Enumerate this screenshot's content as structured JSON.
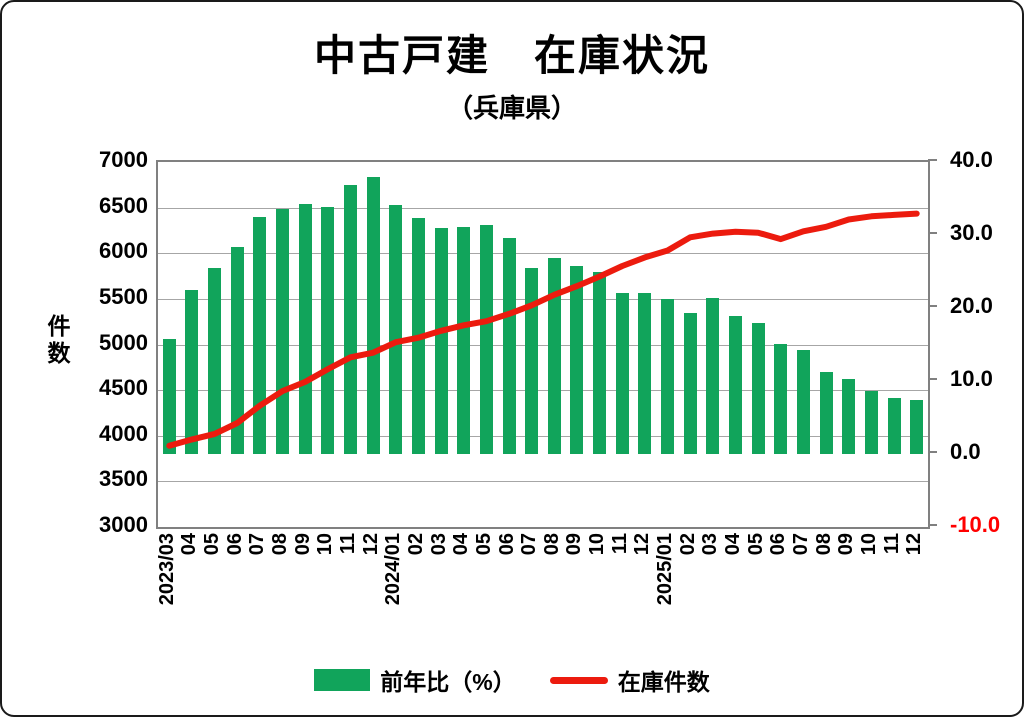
{
  "title": {
    "main": "中古戸建　在庫状況",
    "sub": "（兵庫県）"
  },
  "colors": {
    "bar": "#11a45b",
    "line": "#ec1b0e",
    "grid": "#a6a6a6",
    "plot_border": "#808080",
    "negative_tick_label": "#ff0000"
  },
  "legend": {
    "items": [
      {
        "label": "前年比（%）",
        "marker": "bar"
      },
      {
        "label": "在庫件数",
        "marker": "line"
      }
    ]
  },
  "chart_data": {
    "type": "combo-bar-line",
    "grid": true,
    "legend_position": "bottom",
    "categories": [
      "2023/03",
      "04",
      "05",
      "06",
      "07",
      "08",
      "09",
      "10",
      "11",
      "12",
      "2024/01",
      "02",
      "03",
      "04",
      "05",
      "06",
      "07",
      "08",
      "09",
      "10",
      "11",
      "12",
      "2025/01",
      "02",
      "03",
      "04",
      "05",
      "06",
      "07",
      "08",
      "09",
      "10",
      "11",
      "12"
    ],
    "series": [
      {
        "name": "前年比（%）",
        "type": "bar",
        "axis": "right",
        "values": [
          15.7,
          22.4,
          25.5,
          28.3,
          32.5,
          33.6,
          34.2,
          33.8,
          36.9,
          38.0,
          34.1,
          32.3,
          31.0,
          31.1,
          31.4,
          29.6,
          25.5,
          26.8,
          25.8,
          25.0,
          22.1,
          22.1,
          21.2,
          19.3,
          21.4,
          18.9,
          17.9,
          15.1,
          14.2,
          11.2,
          10.3,
          8.6,
          7.7,
          7.4
        ]
      },
      {
        "name": "在庫件数",
        "type": "line",
        "axis": "left",
        "values": [
          3890,
          3960,
          4020,
          4140,
          4330,
          4490,
          4590,
          4730,
          4860,
          4910,
          5025,
          5075,
          5150,
          5210,
          5255,
          5335,
          5430,
          5545,
          5640,
          5745,
          5860,
          5955,
          6030,
          6175,
          6215,
          6235,
          6225,
          6155,
          6240,
          6290,
          6370,
          6405,
          6420,
          6435
        ]
      }
    ],
    "left_axis": {
      "label": "件数",
      "min": 3000,
      "max": 7000,
      "ticks": [
        "7000",
        "6500",
        "6000",
        "5500",
        "5000",
        "4500",
        "4000",
        "3500",
        "3000"
      ]
    },
    "right_axis": {
      "min": -10,
      "max": 40,
      "bar_base": 0,
      "ticks": [
        "40.0",
        "30.0",
        "20.0",
        "10.0",
        "0.0",
        "-10.0"
      ]
    }
  }
}
